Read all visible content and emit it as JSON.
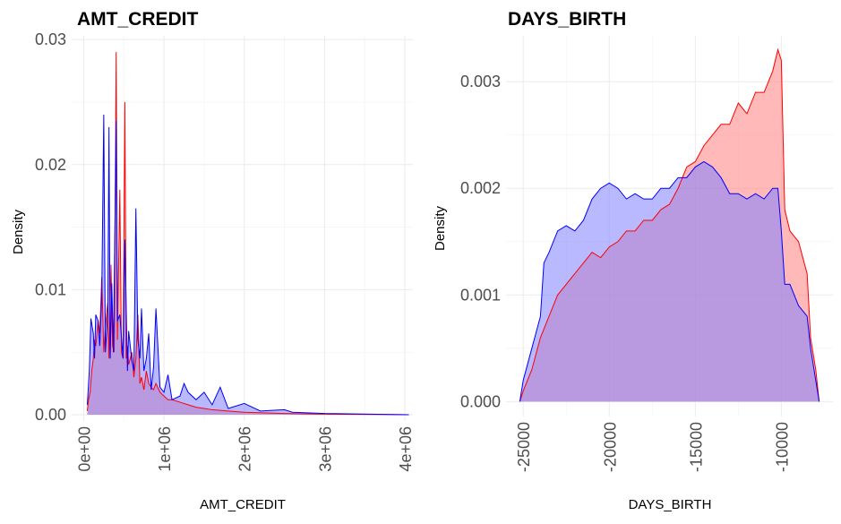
{
  "colors": {
    "background": "#ffffff",
    "grid_major": "#ebebeb",
    "grid_minor": "#f4f4f4",
    "tick_text": "#4d4d4d",
    "title_text": "#000000",
    "series_red_line": "#ff0000",
    "series_red_fill": "#ff8080",
    "series_blue_line": "#0000ff",
    "series_blue_fill": "#8080ff"
  },
  "chart_data": [
    {
      "type": "area",
      "title": "AMT_CREDIT",
      "xlabel": "AMT_CREDIT",
      "ylabel": "Density",
      "xlim": [
        -150000,
        4100000
      ],
      "ylim": [
        -0.0005,
        0.0303
      ],
      "xticks": [
        0,
        1000000,
        2000000,
        3000000,
        4000000
      ],
      "xtick_labels": [
        "0e+00",
        "1e+06",
        "2e+06",
        "3e+06",
        "4e+06"
      ],
      "yticks": [
        0,
        0.01,
        0.02,
        0.03
      ],
      "ytick_labels": [
        "0.00",
        "0.01",
        "0.02",
        "0.03"
      ],
      "grid": true,
      "legend": "none",
      "series": [
        {
          "color": "red",
          "x": [
            45000,
            60000,
            80000,
            100000,
            120000,
            135000,
            150000,
            180000,
            200000,
            225000,
            250000,
            270000,
            300000,
            315000,
            340000,
            360000,
            380000,
            405000,
            420000,
            450000,
            470000,
            490000,
            513000,
            530000,
            545000,
            560000,
            580000,
            600000,
            625000,
            650000,
            675000,
            700000,
            720000,
            750000,
            780000,
            810000,
            840000,
            870000,
            900000,
            950000,
            1000000,
            1050000,
            1100000,
            1200000,
            1300000,
            1400000,
            1500000,
            1600000,
            1800000,
            2000000,
            2500000,
            3000000,
            4050000
          ],
          "values": [
            0.0003,
            0.0012,
            0.0018,
            0.0035,
            0.0045,
            0.006,
            0.0055,
            0.0075,
            0.0065,
            0.011,
            0.005,
            0.007,
            0.009,
            0.0045,
            0.012,
            0.0055,
            0.005,
            0.029,
            0.006,
            0.018,
            0.005,
            0.0045,
            0.025,
            0.0045,
            0.0055,
            0.004,
            0.0045,
            0.005,
            0.003,
            0.0045,
            0.008,
            0.0025,
            0.003,
            0.002,
            0.0035,
            0.0025,
            0.0022,
            0.002,
            0.0025,
            0.0018,
            0.0015,
            0.0012,
            0.0012,
            0.001,
            0.0008,
            0.0006,
            0.0005,
            0.0004,
            0.0003,
            0.0002,
            0.0001,
            5e-05,
            0.0
          ]
        },
        {
          "color": "blue",
          "x": [
            45000,
            70000,
            90000,
            120000,
            135000,
            150000,
            180000,
            200000,
            225000,
            250000,
            270000,
            285000,
            300000,
            315000,
            330000,
            350000,
            370000,
            405000,
            420000,
            450000,
            490000,
            513000,
            545000,
            560000,
            600000,
            625000,
            650000,
            675000,
            700000,
            720000,
            750000,
            780000,
            810000,
            840000,
            870000,
            900000,
            950000,
            1000000,
            1050000,
            1100000,
            1200000,
            1250000,
            1300000,
            1400000,
            1500000,
            1600000,
            1700000,
            1800000,
            2000000,
            2200000,
            2500000,
            2600000,
            3000000,
            4050000
          ],
          "values": [
            0.0008,
            0.0035,
            0.0077,
            0.0065,
            0.0045,
            0.008,
            0.0075,
            0.0055,
            0.0095,
            0.024,
            0.005,
            0.0065,
            0.008,
            0.023,
            0.0045,
            0.0105,
            0.005,
            0.0235,
            0.0075,
            0.008,
            0.0045,
            0.014,
            0.0035,
            0.0067,
            0.0043,
            0.0035,
            0.0165,
            0.006,
            0.0045,
            0.0085,
            0.0035,
            0.0045,
            0.0065,
            0.002,
            0.0038,
            0.0085,
            0.0022,
            0.0018,
            0.0032,
            0.0012,
            0.0015,
            0.0025,
            0.0018,
            0.0012,
            0.0018,
            0.0008,
            0.0022,
            0.0005,
            0.0009,
            0.0003,
            0.0004,
            0.0002,
            0.0001,
            0.0
          ]
        }
      ]
    },
    {
      "type": "area",
      "title": "DAYS_BIRTH",
      "xlabel": "DAYS_BIRTH",
      "ylabel": "Density",
      "xlim": [
        -26000,
        -7000
      ],
      "ylim": [
        -0.00014,
        0.00343
      ],
      "xticks": [
        -25000,
        -20000,
        -15000,
        -10000
      ],
      "xtick_labels": [
        "-25000",
        "-20000",
        "-15000",
        "-10000"
      ],
      "yticks": [
        0,
        0.001,
        0.002,
        0.003
      ],
      "ytick_labels": [
        "0.000",
        "0.001",
        "0.002",
        "0.003"
      ],
      "grid": true,
      "legend": "none",
      "series": [
        {
          "color": "red",
          "x": [
            -25200,
            -25000,
            -24500,
            -24000,
            -23500,
            -23000,
            -22500,
            -22000,
            -21500,
            -21000,
            -20500,
            -20000,
            -19500,
            -19000,
            -18500,
            -18000,
            -17500,
            -17000,
            -16500,
            -16000,
            -15500,
            -15000,
            -14500,
            -14000,
            -13500,
            -13000,
            -12500,
            -12000,
            -11500,
            -11000,
            -10500,
            -10200,
            -10000,
            -9800,
            -9500,
            -9000,
            -8500,
            -8300,
            -8000,
            -7800
          ],
          "values": [
            0.0,
            0.0001,
            0.0003,
            0.0006,
            0.0008,
            0.001,
            0.0011,
            0.0012,
            0.0013,
            0.0014,
            0.00135,
            0.00145,
            0.0015,
            0.0016,
            0.0016,
            0.0017,
            0.0017,
            0.0018,
            0.00185,
            0.002,
            0.0022,
            0.00225,
            0.0024,
            0.0025,
            0.0026,
            0.0026,
            0.0028,
            0.0027,
            0.0029,
            0.0029,
            0.0031,
            0.0033,
            0.0032,
            0.0018,
            0.0016,
            0.0015,
            0.0012,
            0.0006,
            0.0003,
            0.0
          ]
        },
        {
          "color": "blue",
          "x": [
            -25200,
            -25000,
            -24500,
            -24000,
            -23800,
            -23500,
            -23000,
            -22500,
            -22000,
            -21500,
            -21000,
            -20500,
            -20000,
            -19500,
            -19000,
            -18500,
            -18000,
            -17500,
            -17000,
            -16500,
            -16000,
            -15500,
            -15000,
            -14500,
            -14000,
            -13500,
            -13000,
            -12500,
            -12000,
            -11500,
            -11000,
            -10500,
            -10200,
            -10000,
            -9800,
            -9500,
            -9000,
            -8500,
            -8300,
            -8000,
            -7800
          ],
          "values": [
            0.0,
            0.0002,
            0.0005,
            0.0008,
            0.0013,
            0.0014,
            0.0016,
            0.00165,
            0.0016,
            0.0017,
            0.0019,
            0.002,
            0.00205,
            0.002,
            0.0019,
            0.00195,
            0.0019,
            0.0019,
            0.002,
            0.002,
            0.0021,
            0.0021,
            0.0022,
            0.00225,
            0.0022,
            0.0021,
            0.00195,
            0.00195,
            0.0019,
            0.00195,
            0.0019,
            0.002,
            0.002,
            0.0016,
            0.0011,
            0.0011,
            0.0009,
            0.0008,
            0.0005,
            0.0002,
            0.0
          ]
        }
      ]
    }
  ]
}
